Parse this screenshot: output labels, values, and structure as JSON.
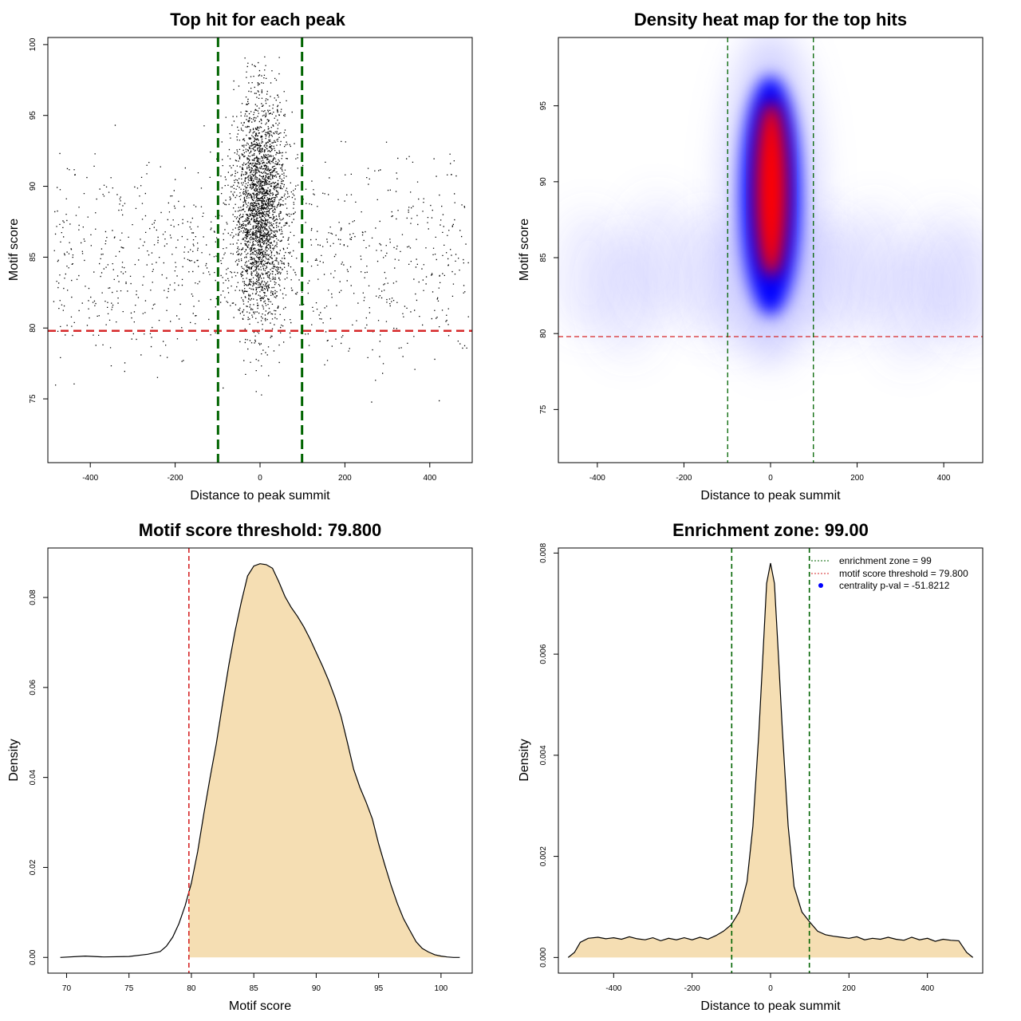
{
  "chart_data": [
    {
      "type": "scatter",
      "title": "Top hit for each peak",
      "xlabel": "Distance to peak summit",
      "ylabel": "Motif score",
      "xlim": [
        -500,
        500
      ],
      "ylim": [
        70.5,
        100.5
      ],
      "xticks": [
        "-400",
        "-200",
        "0",
        "200",
        "400"
      ],
      "yticks": [
        "75",
        "80",
        "85",
        "90",
        "95",
        "100"
      ],
      "threshold_y": 79.8,
      "zone_x": [
        -99,
        99
      ],
      "points_estimate": {
        "n_central": 2600,
        "n_background": 1000,
        "central_sd_x": 30,
        "score_mean": 87.5,
        "score_sd": 4.2
      },
      "colors": {
        "points": "#000000",
        "zone": "#006400",
        "threshold": "#d62728"
      }
    },
    {
      "type": "heatmap",
      "title": "Density heat map for the top hits",
      "xlabel": "Distance to peak summit",
      "ylabel": "Motif score",
      "xlim": [
        -490,
        490
      ],
      "ylim": [
        71.5,
        99.5
      ],
      "xticks": [
        "-400",
        "-200",
        "0",
        "200",
        "400"
      ],
      "yticks": [
        "75",
        "80",
        "85",
        "90",
        "95"
      ],
      "threshold_y": 79.8,
      "zone_x": [
        -99,
        99
      ],
      "hotspot": {
        "x": 0,
        "y": 89.5
      },
      "colors": {
        "low": "#ffffff",
        "mid": "#0000ff",
        "high": "#ff0000",
        "zone": "#006400",
        "threshold": "#d62728"
      }
    },
    {
      "type": "area",
      "title": "Motif score threshold: 79.800",
      "xlabel": "Motif score",
      "ylabel": "Density",
      "xlim": [
        68.5,
        102.5
      ],
      "ylim": [
        -0.0035,
        0.091
      ],
      "xticks": [
        "70",
        "75",
        "80",
        "85",
        "90",
        "95",
        "100"
      ],
      "yticks": [
        "0.00",
        "0.02",
        "0.04",
        "0.06",
        "0.08"
      ],
      "threshold_x": 79.8,
      "fill_from_x": 79.8,
      "x": [
        69.5,
        71.5,
        73,
        75,
        76.5,
        77.5,
        78,
        78.5,
        79,
        79.5,
        80,
        80.5,
        81,
        81.5,
        82,
        82.5,
        83,
        83.5,
        84,
        84.5,
        85,
        85.5,
        86,
        86.5,
        87,
        87.5,
        88,
        88.5,
        89,
        89.5,
        90,
        90.5,
        91,
        91.5,
        92,
        92.5,
        93,
        93.5,
        94,
        94.5,
        95,
        95.5,
        96,
        96.5,
        97,
        97.5,
        98,
        98.5,
        99,
        99.5,
        100,
        100.5,
        101,
        101.5
      ],
      "y": [
        0.0,
        0.0003,
        0.0001,
        0.0002,
        0.0007,
        0.0013,
        0.0025,
        0.0045,
        0.0075,
        0.0115,
        0.0165,
        0.0235,
        0.032,
        0.04,
        0.0475,
        0.0565,
        0.065,
        0.0725,
        0.079,
        0.0848,
        0.087,
        0.0875,
        0.0873,
        0.0865,
        0.0835,
        0.0802,
        0.0778,
        0.0758,
        0.0735,
        0.0708,
        0.0678,
        0.0648,
        0.0615,
        0.0578,
        0.0535,
        0.0478,
        0.0418,
        0.0378,
        0.0345,
        0.0308,
        0.0253,
        0.0205,
        0.016,
        0.012,
        0.0086,
        0.006,
        0.0035,
        0.002,
        0.0012,
        0.0006,
        0.0003,
        0.0001,
        0.0,
        0.0
      ],
      "colors": {
        "fill": "#f5deb3",
        "line": "#000000",
        "threshold": "#d62728"
      }
    },
    {
      "type": "area",
      "title": "Enrichment zone: 99.00",
      "xlabel": "Distance to peak summit",
      "ylabel": "Density",
      "xlim": [
        -541,
        541
      ],
      "ylim": [
        -0.00031,
        0.0081
      ],
      "xticks": [
        "-400",
        "-200",
        "0",
        "200",
        "400"
      ],
      "yticks": [
        "0.000",
        "0.002",
        "0.004",
        "0.006",
        "0.008"
      ],
      "zone_x": [
        -99,
        99
      ],
      "x": [
        -516,
        -500,
        -485,
        -465,
        -440,
        -420,
        -400,
        -380,
        -360,
        -340,
        -320,
        -300,
        -280,
        -260,
        -240,
        -220,
        -200,
        -180,
        -160,
        -140,
        -120,
        -100,
        -80,
        -60,
        -45,
        -30,
        -20,
        -10,
        0,
        10,
        20,
        30,
        45,
        60,
        80,
        100,
        120,
        140,
        160,
        180,
        200,
        220,
        240,
        260,
        280,
        300,
        320,
        340,
        360,
        380,
        400,
        420,
        440,
        460,
        480,
        500,
        516
      ],
      "y": [
        0.0,
        0.0001,
        0.0003,
        0.00038,
        0.0004,
        0.00037,
        0.00039,
        0.00036,
        0.00041,
        0.00037,
        0.00035,
        0.00039,
        0.00033,
        0.00038,
        0.00035,
        0.00039,
        0.00035,
        0.0004,
        0.00036,
        0.00043,
        0.00052,
        0.00065,
        0.0009,
        0.0015,
        0.0026,
        0.0044,
        0.0059,
        0.0074,
        0.0078,
        0.0074,
        0.006,
        0.0045,
        0.0026,
        0.0014,
        0.0009,
        0.0007,
        0.00052,
        0.00045,
        0.00042,
        0.0004,
        0.00038,
        0.00041,
        0.00035,
        0.00038,
        0.00036,
        0.0004,
        0.00036,
        0.00034,
        0.0004,
        0.00035,
        0.00038,
        0.00032,
        0.00036,
        0.00034,
        0.00033,
        0.0001,
        0.0
      ],
      "legend": [
        {
          "label": "enrichment zone = 99",
          "color": "#006400",
          "style": "dotted-line"
        },
        {
          "label": "motif score threshold = 79.800",
          "color": "#d62728",
          "style": "dotted-line"
        },
        {
          "label": "centrality p-val = -51.8212",
          "color": "#0000ff",
          "style": "point"
        }
      ],
      "legend_position": "top-right",
      "colors": {
        "fill": "#f5deb3",
        "line": "#000000",
        "zone": "#006400"
      }
    }
  ]
}
